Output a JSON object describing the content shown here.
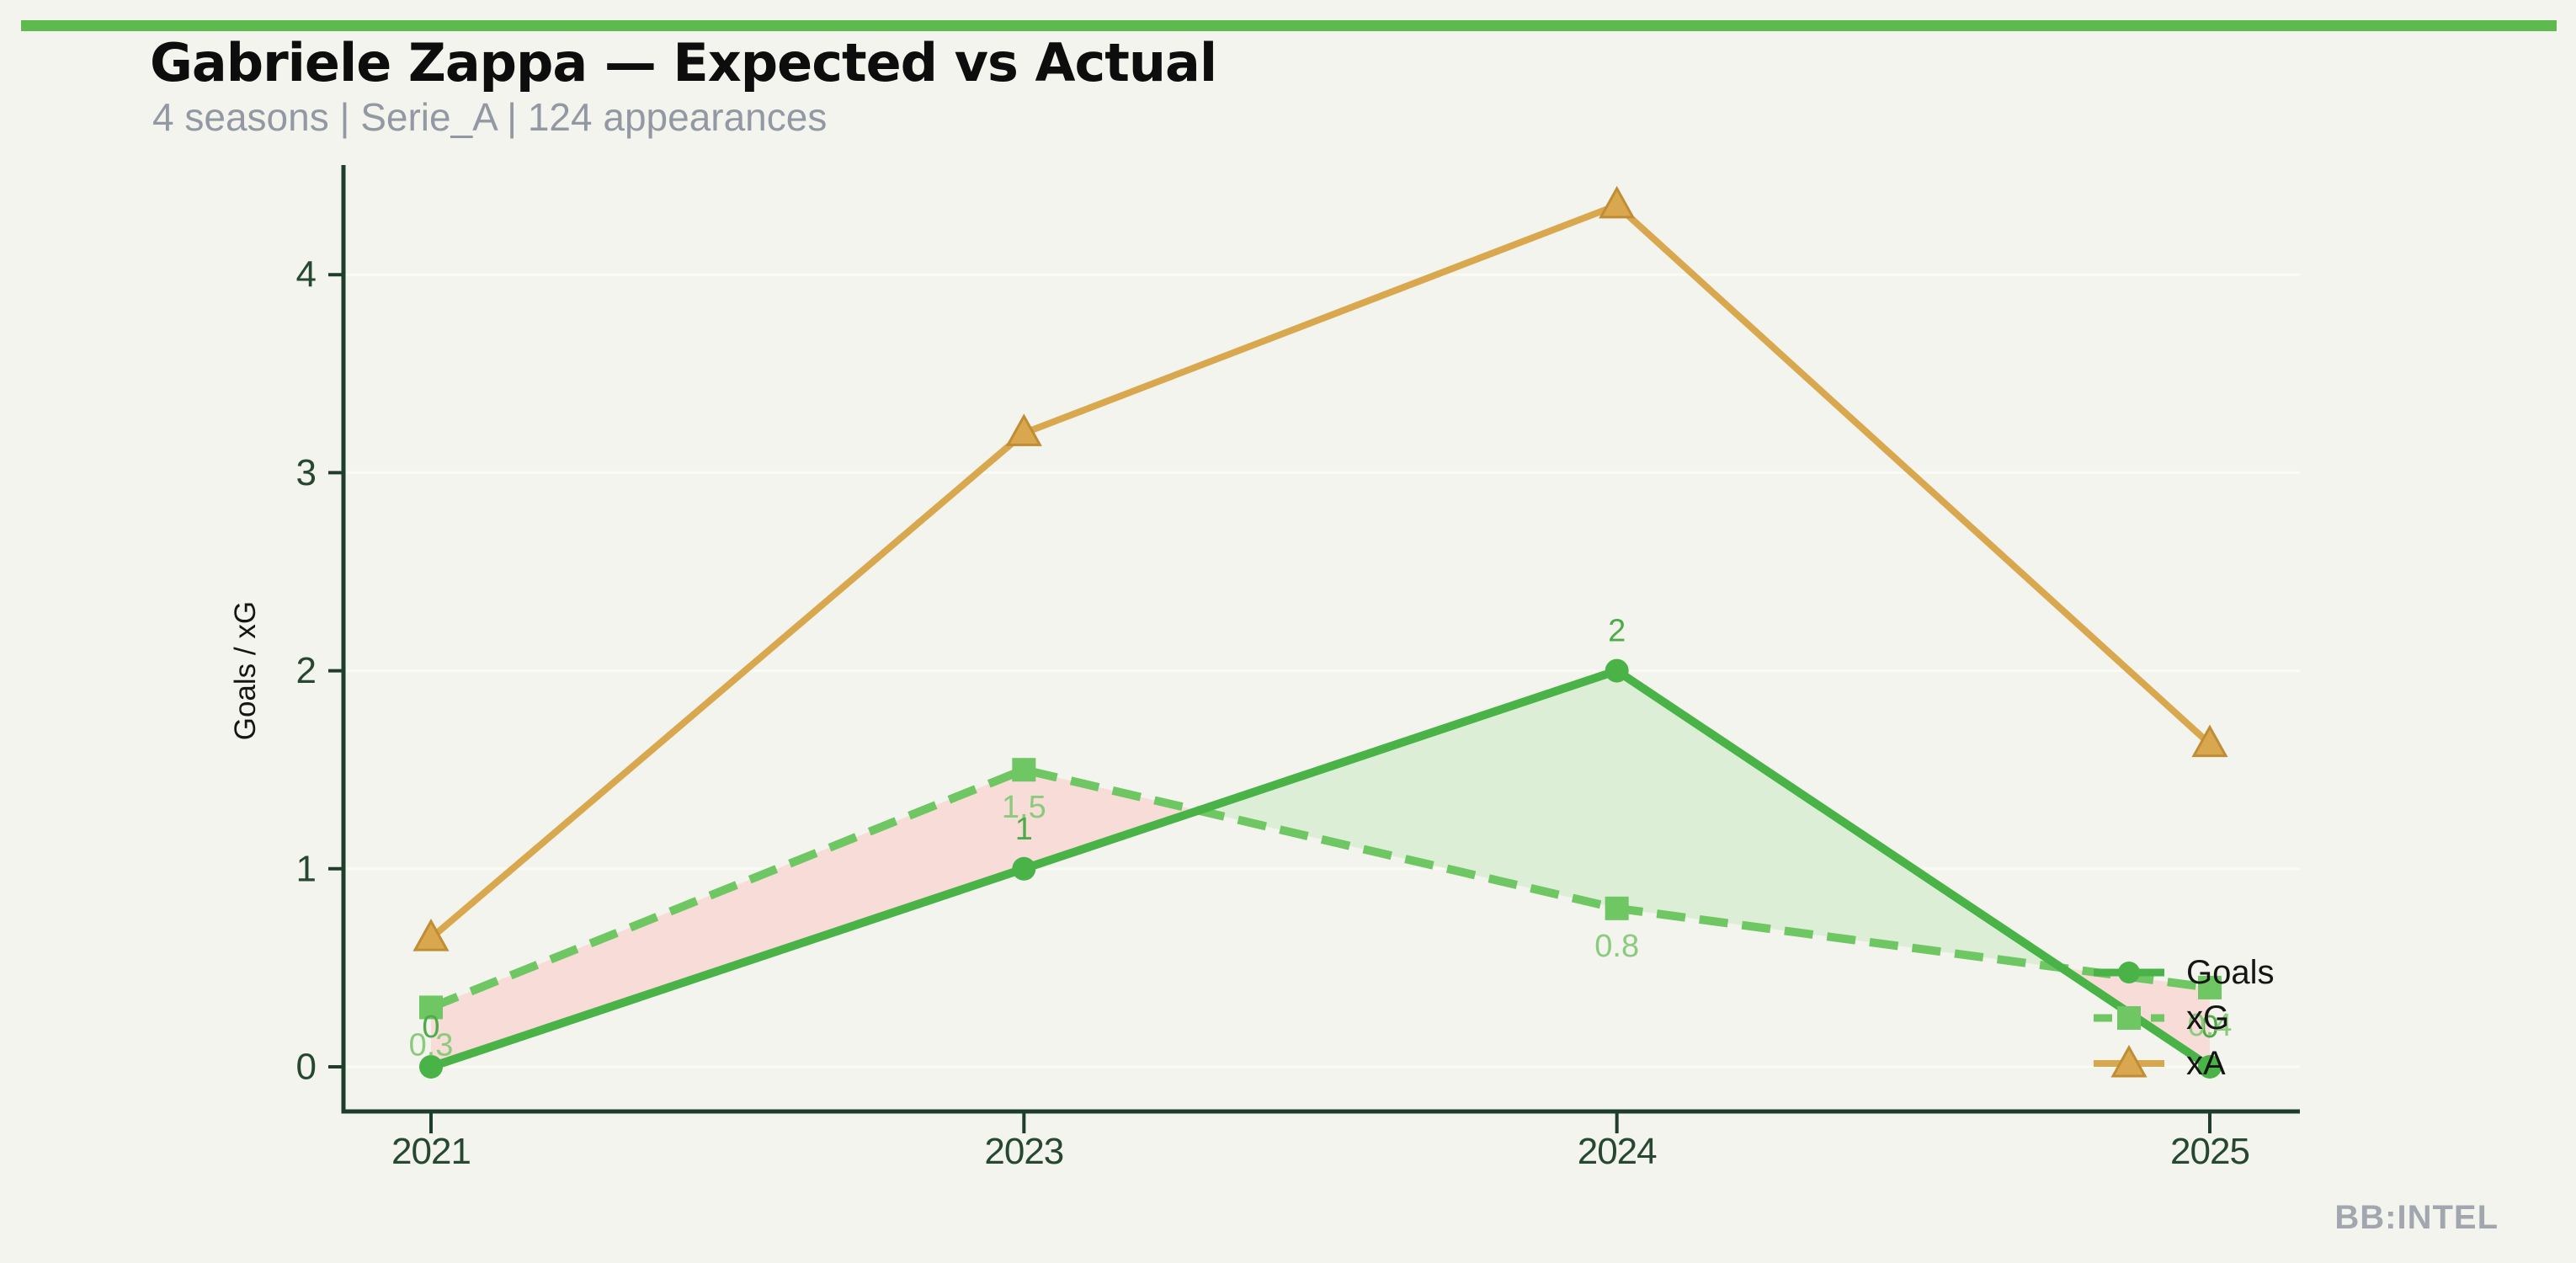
{
  "header": {
    "title": "Gabriele Zappa — Expected vs Actual",
    "subtitle": "4 seasons | Serie_A | 124 appearances"
  },
  "footer": {
    "watermark": "BB:INTEL"
  },
  "colors": {
    "background": "#f3f4ed",
    "accent_bar": "#5cba4e",
    "axis": "#1e3e2b",
    "tick_label": "#274830",
    "grid": "#fafbf4",
    "title": "#0d0d0d",
    "subtitle": "#9299a3",
    "watermark": "#a2a7af",
    "ylabel": "#151515",
    "fill_xg_above": "#f8dcd7",
    "fill_goals_above": "#ddeed6"
  },
  "chart_data": {
    "type": "line",
    "title": "Gabriele Zappa — Expected vs Actual",
    "categories": [
      "2021",
      "2023",
      "2024",
      "2025"
    ],
    "xlabel": "",
    "ylabel": "Goals / xG",
    "ylim": [
      0,
      4.55
    ],
    "yticks": [
      0,
      1,
      2,
      3,
      4
    ],
    "grid": "horizontal",
    "legend_position": "right-inside",
    "series": [
      {
        "name": "Goals",
        "values": [
          0,
          1,
          2,
          0
        ],
        "point_labels": [
          "0",
          "1",
          "2",
          "0"
        ],
        "color": "#49b347",
        "label_color": "#4fab48",
        "marker": "circle",
        "line_style": "solid"
      },
      {
        "name": "xG",
        "values": [
          0.3,
          1.5,
          0.8,
          0.4
        ],
        "point_labels": [
          "0.3",
          "1.5",
          "0.8",
          "0.4"
        ],
        "color": "#6fc763",
        "label_color": "#8bcb7d",
        "marker": "square",
        "line_style": "dashed"
      },
      {
        "name": "xA",
        "values": [
          0.65,
          3.2,
          4.35,
          1.63
        ],
        "point_labels": null,
        "color": "#d9a84e",
        "label_color": null,
        "marker_outline": "#c08d35",
        "marker": "triangle-up",
        "line_style": "solid"
      }
    ],
    "fills": [
      {
        "between": [
          "xG",
          "Goals"
        ],
        "when": "xG>Goals",
        "color": "#f8dcd7"
      },
      {
        "between": [
          "Goals",
          "xG"
        ],
        "when": "Goals>xG",
        "color": "#ddeed6"
      }
    ]
  }
}
